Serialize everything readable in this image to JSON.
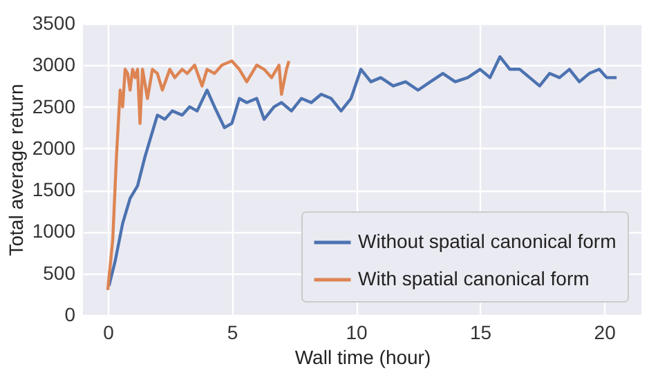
{
  "chart_data": {
    "type": "line",
    "xlabel": "Wall time (hour)",
    "ylabel": "Total average return",
    "xlim": [
      -1,
      21.5
    ],
    "ylim": [
      0,
      3500
    ],
    "xticks": [
      0,
      5,
      10,
      15,
      20
    ],
    "yticks": [
      0,
      500,
      1000,
      1500,
      2000,
      2500,
      3000,
      3500
    ],
    "grid": true,
    "legend": "bottom right",
    "line_style": "solid",
    "series": [
      {
        "name": "Without spatial canonical form",
        "color": "#4c72b0",
        "x": [
          0.05,
          0.3,
          0.6,
          0.9,
          1.2,
          1.5,
          1.8,
          2.0,
          2.3,
          2.6,
          3.0,
          3.3,
          3.6,
          4.0,
          4.3,
          4.7,
          5.0,
          5.3,
          5.6,
          6.0,
          6.3,
          6.7,
          7.0,
          7.4,
          7.8,
          8.2,
          8.6,
          9.0,
          9.4,
          9.8,
          10.2,
          10.6,
          11.0,
          11.5,
          12.0,
          12.5,
          13.0,
          13.5,
          14.0,
          14.5,
          15.0,
          15.4,
          15.8,
          16.2,
          16.6,
          17.0,
          17.4,
          17.8,
          18.2,
          18.6,
          19.0,
          19.4,
          19.8,
          20.1,
          20.5
        ],
        "values": [
          350,
          650,
          1100,
          1400,
          1550,
          1900,
          2200,
          2400,
          2350,
          2450,
          2400,
          2500,
          2450,
          2700,
          2500,
          2250,
          2300,
          2600,
          2550,
          2600,
          2350,
          2500,
          2550,
          2450,
          2600,
          2550,
          2650,
          2600,
          2450,
          2600,
          2950,
          2800,
          2850,
          2750,
          2800,
          2700,
          2800,
          2900,
          2800,
          2850,
          2950,
          2850,
          3100,
          2950,
          2950,
          2850,
          2750,
          2900,
          2850,
          2950,
          2800,
          2900,
          2950,
          2850,
          2850
        ]
      },
      {
        "name": "With spatial canonical form",
        "color": "#dd8452",
        "x": [
          0.0,
          0.2,
          0.35,
          0.5,
          0.6,
          0.7,
          0.8,
          0.9,
          1.0,
          1.1,
          1.2,
          1.3,
          1.4,
          1.6,
          1.8,
          2.0,
          2.2,
          2.5,
          2.7,
          3.0,
          3.2,
          3.5,
          3.8,
          4.0,
          4.3,
          4.6,
          5.0,
          5.3,
          5.6,
          6.0,
          6.3,
          6.6,
          6.9,
          7.0,
          7.2,
          7.3
        ],
        "values": [
          300,
          900,
          1900,
          2700,
          2500,
          2950,
          2900,
          2700,
          2950,
          2850,
          2950,
          2300,
          2950,
          2600,
          2950,
          2900,
          2700,
          2950,
          2850,
          2950,
          2900,
          3000,
          2750,
          2950,
          2900,
          3000,
          3050,
          2950,
          2800,
          3000,
          2950,
          2850,
          3000,
          2650,
          2950,
          3050
        ]
      }
    ]
  }
}
